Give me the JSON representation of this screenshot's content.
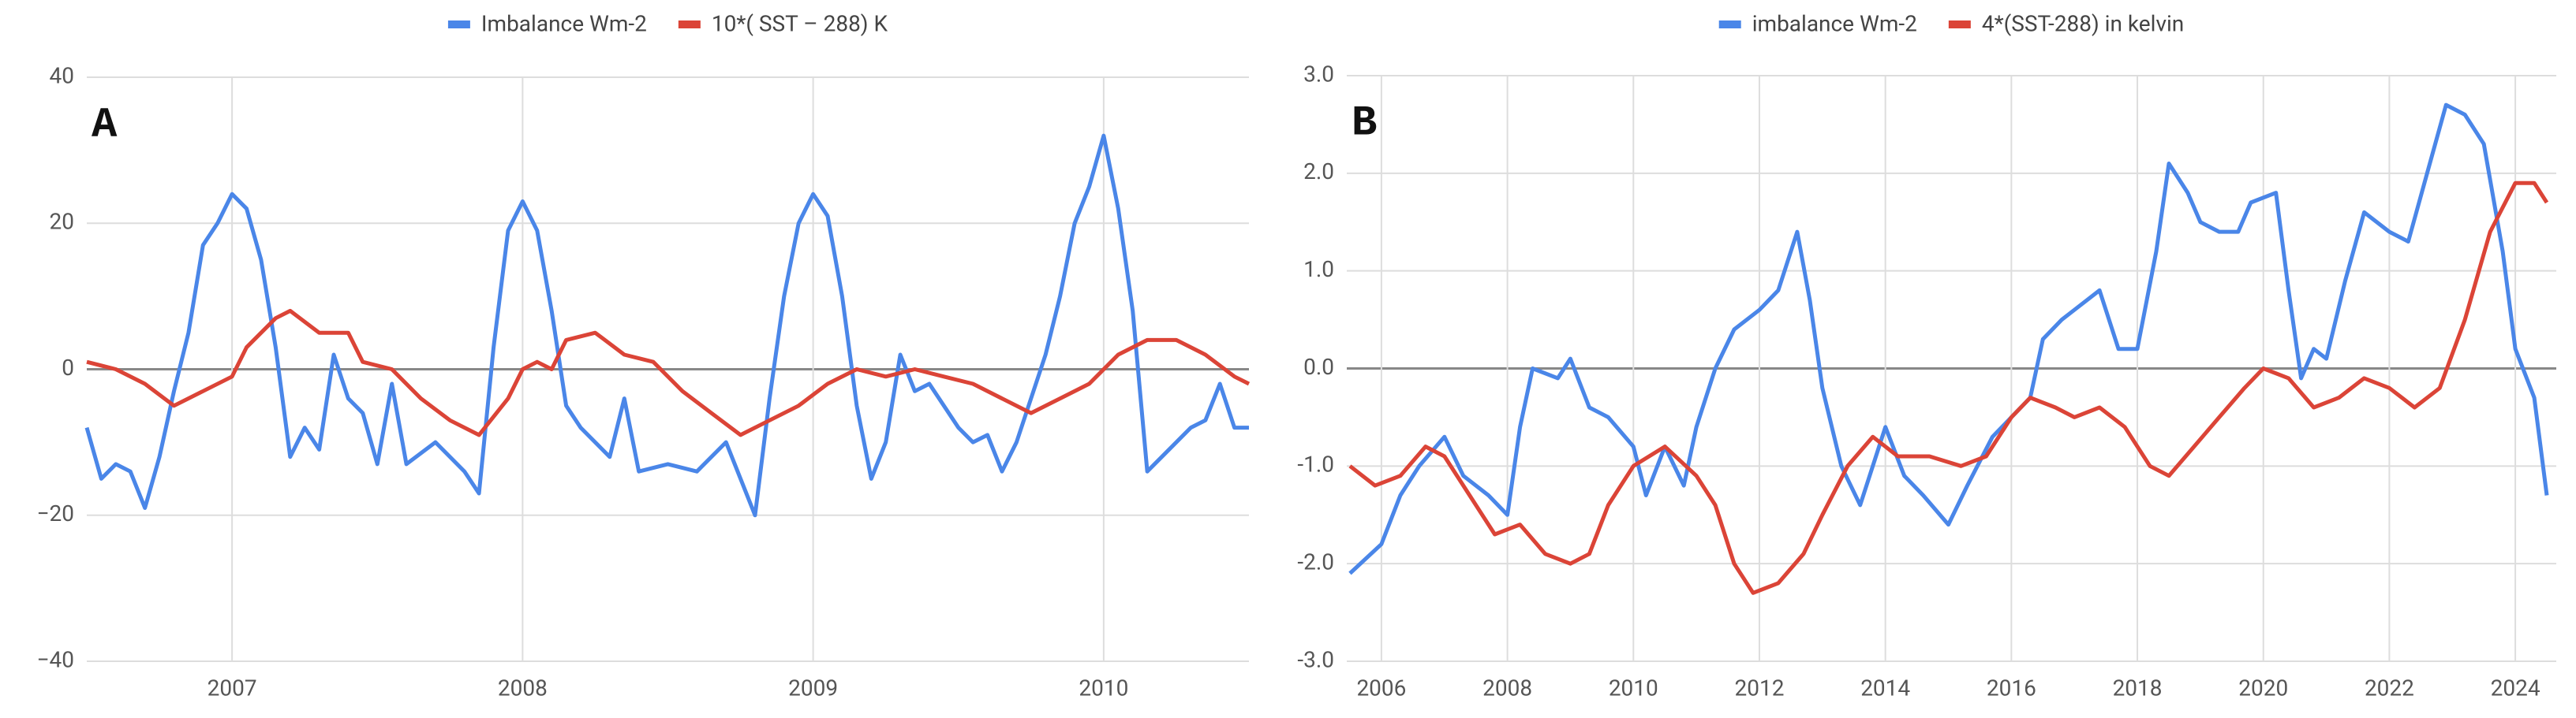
{
  "chart_data": [
    {
      "type": "line",
      "annotation": "A",
      "xlim": [
        2006.5,
        2010.5
      ],
      "xticks": [
        2007,
        2008,
        2009,
        2010
      ],
      "ylim": [
        -40,
        40
      ],
      "yticks": [
        {
          "value": -40,
          "label": "−40"
        },
        {
          "value": -20,
          "label": "−20"
        },
        0,
        20,
        40
      ],
      "grid": true,
      "series": [
        {
          "name": "Imbalance Wm-2",
          "color": "#4a86e8",
          "x": [
            2006.5,
            2006.55,
            2006.6,
            2006.65,
            2006.7,
            2006.75,
            2006.8,
            2006.85,
            2006.9,
            2006.95,
            2007.0,
            2007.05,
            2007.1,
            2007.15,
            2007.2,
            2007.25,
            2007.3,
            2007.35,
            2007.4,
            2007.45,
            2007.5,
            2007.55,
            2007.6,
            2007.7,
            2007.8,
            2007.85,
            2007.9,
            2007.95,
            2008.0,
            2008.05,
            2008.1,
            2008.15,
            2008.2,
            2008.3,
            2008.35,
            2008.4,
            2008.5,
            2008.6,
            2008.7,
            2008.75,
            2008.8,
            2008.85,
            2008.9,
            2008.95,
            2009.0,
            2009.05,
            2009.1,
            2009.15,
            2009.2,
            2009.25,
            2009.3,
            2009.35,
            2009.4,
            2009.5,
            2009.55,
            2009.6,
            2009.65,
            2009.7,
            2009.8,
            2009.85,
            2009.9,
            2009.95,
            2010.0,
            2010.05,
            2010.1,
            2010.15,
            2010.2,
            2010.3,
            2010.35,
            2010.4,
            2010.45,
            2010.5
          ],
          "values": [
            -8,
            -15,
            -13,
            -14,
            -19,
            -12,
            -3,
            5,
            17,
            20,
            24,
            22,
            15,
            3,
            -12,
            -8,
            -11,
            2,
            -4,
            -6,
            -13,
            -2,
            -13,
            -10,
            -14,
            -17,
            3,
            19,
            23,
            19,
            8,
            -5,
            -8,
            -12,
            -4,
            -14,
            -13,
            -14,
            -10,
            -15,
            -20,
            -4,
            10,
            20,
            24,
            21,
            10,
            -5,
            -15,
            -10,
            2,
            -3,
            -2,
            -8,
            -10,
            -9,
            -14,
            -10,
            2,
            10,
            20,
            25,
            32,
            22,
            8,
            -14,
            -12,
            -8,
            -7,
            -2,
            -8,
            -8
          ]
        },
        {
          "name": "10*( SST – 288) K",
          "color": "#db4437",
          "x": [
            2006.5,
            2006.6,
            2006.7,
            2006.8,
            2006.9,
            2007.0,
            2007.05,
            2007.15,
            2007.2,
            2007.3,
            2007.4,
            2007.45,
            2007.55,
            2007.65,
            2007.75,
            2007.85,
            2007.95,
            2008.0,
            2008.05,
            2008.1,
            2008.15,
            2008.25,
            2008.35,
            2008.45,
            2008.55,
            2008.65,
            2008.75,
            2008.85,
            2008.95,
            2009.05,
            2009.15,
            2009.25,
            2009.35,
            2009.45,
            2009.55,
            2009.65,
            2009.75,
            2009.85,
            2009.95,
            2010.05,
            2010.15,
            2010.25,
            2010.35,
            2010.45,
            2010.5
          ],
          "values": [
            1,
            0,
            -2,
            -5,
            -3,
            -1,
            3,
            7,
            8,
            5,
            5,
            1,
            0,
            -4,
            -7,
            -9,
            -4,
            0,
            1,
            0,
            4,
            5,
            2,
            1,
            -3,
            -6,
            -9,
            -7,
            -5,
            -2,
            0,
            -1,
            0,
            -1,
            -2,
            -4,
            -6,
            -4,
            -2,
            2,
            4,
            4,
            2,
            -1,
            -2
          ]
        }
      ]
    },
    {
      "type": "line",
      "annotation": "B",
      "xlim": [
        2005.45,
        2024.65
      ],
      "xticks": [
        2006,
        2008,
        2010,
        2012,
        2014,
        2016,
        2018,
        2020,
        2022,
        2024
      ],
      "ylim": [
        -3,
        3
      ],
      "yticks": [
        {
          "value": -3,
          "label": "-3.0"
        },
        {
          "value": -2,
          "label": "-2.0"
        },
        {
          "value": -1,
          "label": "-1.0"
        },
        {
          "value": 0,
          "label": "0.0"
        },
        {
          "value": 1,
          "label": "1.0"
        },
        {
          "value": 2,
          "label": "2.0"
        },
        {
          "value": 3,
          "label": "3.0"
        }
      ],
      "grid": true,
      "series": [
        {
          "name": "imbalance Wm-2",
          "color": "#4a86e8",
          "x": [
            2005.5,
            2006.0,
            2006.3,
            2006.6,
            2007.0,
            2007.3,
            2007.7,
            2008.0,
            2008.2,
            2008.4,
            2008.8,
            2009.0,
            2009.3,
            2009.6,
            2010.0,
            2010.2,
            2010.5,
            2010.8,
            2011.0,
            2011.3,
            2011.6,
            2012.0,
            2012.3,
            2012.6,
            2012.8,
            2013.0,
            2013.3,
            2013.6,
            2014.0,
            2014.3,
            2014.6,
            2015.0,
            2015.3,
            2015.7,
            2016.0,
            2016.3,
            2016.5,
            2016.8,
            2017.0,
            2017.4,
            2017.7,
            2018.0,
            2018.3,
            2018.5,
            2018.8,
            2019.0,
            2019.3,
            2019.6,
            2019.8,
            2020.2,
            2020.4,
            2020.6,
            2020.8,
            2021.0,
            2021.3,
            2021.6,
            2022.0,
            2022.3,
            2022.6,
            2022.9,
            2023.2,
            2023.5,
            2023.8,
            2024.0,
            2024.3,
            2024.5
          ],
          "values": [
            -2.1,
            -1.8,
            -1.3,
            -1.0,
            -0.7,
            -1.1,
            -1.3,
            -1.5,
            -0.6,
            0,
            -0.1,
            0.1,
            -0.4,
            -0.5,
            -0.8,
            -1.3,
            -0.8,
            -1.2,
            -0.6,
            0.0,
            0.4,
            0.6,
            0.8,
            1.4,
            0.7,
            -0.2,
            -1.0,
            -1.4,
            -0.6,
            -1.1,
            -1.3,
            -1.6,
            -1.2,
            -0.7,
            -0.5,
            -0.3,
            0.3,
            0.5,
            0.6,
            0.8,
            0.2,
            0.2,
            1.2,
            2.1,
            1.8,
            1.5,
            1.4,
            1.4,
            1.7,
            1.8,
            0.8,
            -0.1,
            0.2,
            0.1,
            0.9,
            1.6,
            1.4,
            1.3,
            2.0,
            2.7,
            2.6,
            2.3,
            1.2,
            0.2,
            -0.3,
            -1.3
          ]
        },
        {
          "name": "4*(SST-288) in kelvin",
          "color": "#db4437",
          "x": [
            2005.5,
            2005.9,
            2006.3,
            2006.7,
            2007.0,
            2007.4,
            2007.8,
            2008.2,
            2008.6,
            2009.0,
            2009.3,
            2009.6,
            2010.0,
            2010.5,
            2011.0,
            2011.3,
            2011.6,
            2011.9,
            2012.3,
            2012.7,
            2013.0,
            2013.4,
            2013.8,
            2014.2,
            2014.7,
            2015.2,
            2015.6,
            2016.0,
            2016.3,
            2016.7,
            2017.0,
            2017.4,
            2017.8,
            2018.2,
            2018.5,
            2018.9,
            2019.3,
            2019.7,
            2020.0,
            2020.4,
            2020.8,
            2021.2,
            2021.6,
            2022.0,
            2022.4,
            2022.8,
            2023.2,
            2023.6,
            2024.0,
            2024.3,
            2024.5
          ],
          "values": [
            -1.0,
            -1.2,
            -1.1,
            -0.8,
            -0.9,
            -1.3,
            -1.7,
            -1.6,
            -1.9,
            -2.0,
            -1.9,
            -1.4,
            -1.0,
            -0.8,
            -1.1,
            -1.4,
            -2.0,
            -2.3,
            -2.2,
            -1.9,
            -1.5,
            -1.0,
            -0.7,
            -0.9,
            -0.9,
            -1.0,
            -0.9,
            -0.5,
            -0.3,
            -0.4,
            -0.5,
            -0.4,
            -0.6,
            -1.0,
            -1.1,
            -0.8,
            -0.5,
            -0.2,
            0.0,
            -0.1,
            -0.4,
            -0.3,
            -0.1,
            -0.2,
            -0.4,
            -0.2,
            0.5,
            1.4,
            1.9,
            1.9,
            1.7
          ]
        }
      ]
    }
  ]
}
